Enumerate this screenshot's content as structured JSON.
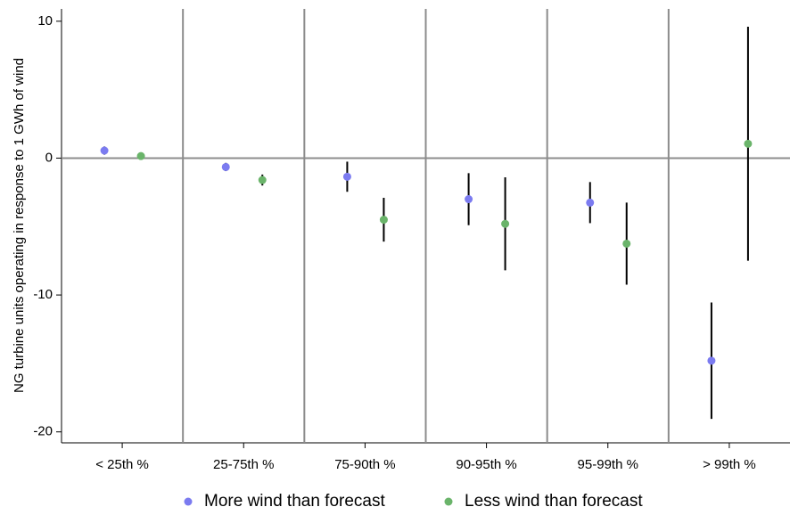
{
  "chart_data": {
    "type": "dot-errorbar",
    "y_label": "NG turbine units operating in response to 1 GWh of wind",
    "categories": [
      "< 25th %",
      "25-75th %",
      "75-90th %",
      "90-95th %",
      "95-99th %",
      "> 99th %"
    ],
    "series": [
      {
        "name": "More wind than forecast",
        "color": "#7b7bf0",
        "values": [
          0.55,
          -0.65,
          -1.36,
          -3.0,
          -3.25,
          -14.8
        ],
        "errors": [
          0.3,
          0.3,
          1.1,
          1.9,
          1.5,
          4.25
        ]
      },
      {
        "name": "Less wind than forecast",
        "color": "#6ab46a",
        "values": [
          0.15,
          -1.6,
          -4.5,
          -4.8,
          -6.25,
          1.05
        ],
        "errors": [
          0.2,
          0.4,
          1.6,
          3.4,
          3.0,
          8.55
        ]
      }
    ],
    "ylim": [
      -20.8,
      10.9
    ],
    "yticks": [
      -20,
      -10,
      0,
      10
    ],
    "grid": true,
    "legend": "bottom"
  }
}
